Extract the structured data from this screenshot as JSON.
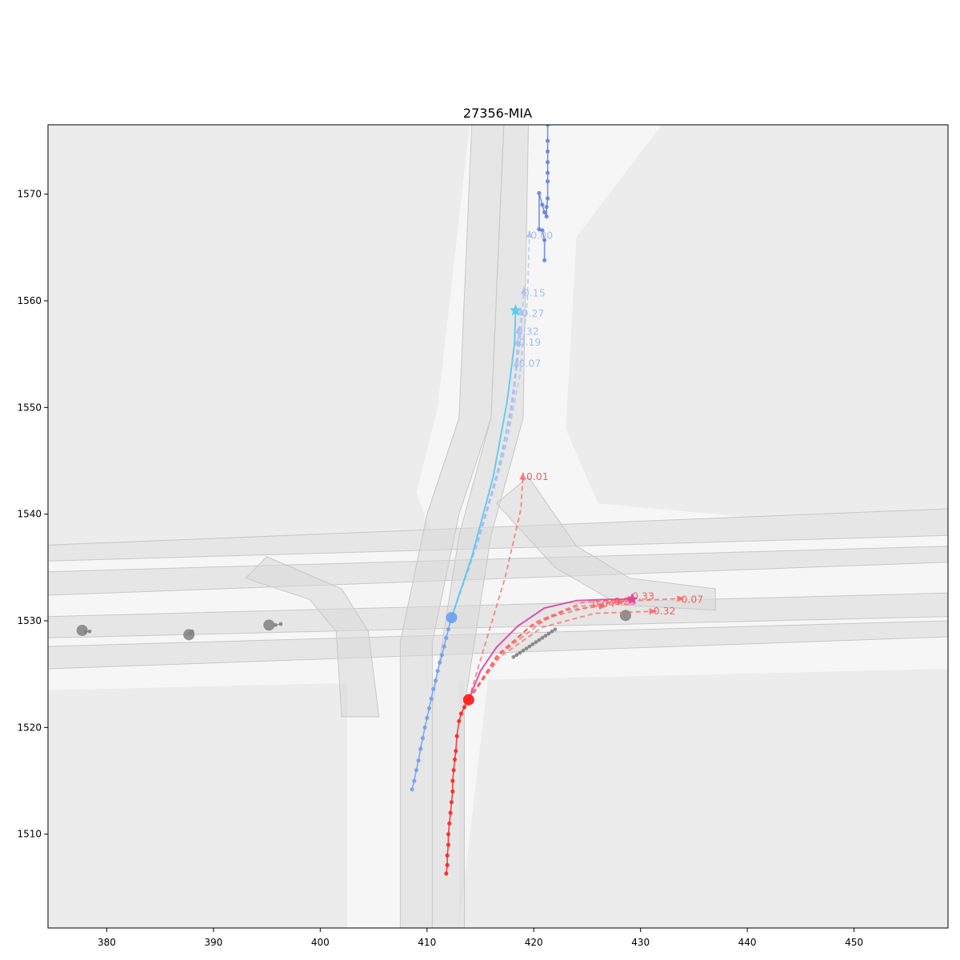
{
  "chart_data": {
    "type": "scatter",
    "title": "27356-MIA",
    "xlabel": "",
    "ylabel": "",
    "xlim": [
      374.5,
      458.8
    ],
    "ylim": [
      1501.2,
      1576.5
    ],
    "x_ticks": [
      380,
      390,
      400,
      410,
      420,
      430,
      440,
      450
    ],
    "y_ticks": [
      1510,
      1520,
      1530,
      1540,
      1550,
      1560,
      1570
    ],
    "grid": false,
    "legend": "none",
    "colors": {
      "background": "#ffffff",
      "plot_background": "#ececec",
      "road": "#f6f6f6",
      "lane": "#d9d9d9",
      "focal_history": "#ff2020",
      "focal_prediction": "#ff5a5a",
      "focal_ground_truth": "#e040a0",
      "blue_history": "#6f9ef0",
      "blue_prediction": "#a6bff0",
      "blue_ground_truth": "#5ac8f0",
      "other_agent": "#808080",
      "far_agent": "#5f7fe0"
    },
    "map": {
      "roads": [
        [
          [
            374.5,
            1537
          ],
          [
            458.8,
            1540.5
          ],
          [
            458.8,
            1525.5
          ],
          [
            374.5,
            1523.5
          ]
        ],
        [
          [
            402.5,
            1501.2
          ],
          [
            413.5,
            1501.2
          ],
          [
            413.5,
            1530
          ],
          [
            409,
            1542
          ],
          [
            411,
            1550
          ],
          [
            414,
            1576.5
          ],
          [
            432,
            1576.5
          ],
          [
            424,
            1566
          ],
          [
            423,
            1548
          ],
          [
            426,
            1541
          ],
          [
            458.8,
            1538
          ],
          [
            458.8,
            1532
          ],
          [
            421,
            1534
          ],
          [
            416,
            1527
          ],
          [
            413,
            1501.2
          ]
        ],
        [
          [
            402.5,
            1501.2
          ],
          [
            413,
            1501.2
          ],
          [
            413,
            1530
          ],
          [
            402.5,
            1530
          ]
        ]
      ],
      "lanes": [
        [
          [
            374.5,
            1537.1
          ],
          [
            458.8,
            1540.5
          ],
          [
            458.8,
            1538
          ],
          [
            374.5,
            1535.6
          ]
        ],
        [
          [
            374.5,
            1534.6
          ],
          [
            458.8,
            1537
          ],
          [
            458.8,
            1535.5
          ],
          [
            374.5,
            1532.4
          ]
        ],
        [
          [
            374.5,
            1530.4
          ],
          [
            458.8,
            1532.6
          ],
          [
            458.8,
            1530.4
          ],
          [
            374.5,
            1528.4
          ]
        ],
        [
          [
            374.5,
            1527.6
          ],
          [
            458.8,
            1530
          ],
          [
            458.8,
            1528.5
          ],
          [
            374.5,
            1525.5
          ]
        ],
        [
          [
            407.5,
            1501.2
          ],
          [
            410.5,
            1501.2
          ],
          [
            410.5,
            1528
          ],
          [
            413,
            1540
          ],
          [
            416,
            1549
          ],
          [
            417.2,
            1576.5
          ],
          [
            414.2,
            1576.5
          ],
          [
            413,
            1549
          ],
          [
            410,
            1540
          ],
          [
            407.5,
            1528
          ]
        ],
        [
          [
            410.5,
            1501.2
          ],
          [
            413.5,
            1501.2
          ],
          [
            413.5,
            1522
          ],
          [
            416,
            1538
          ],
          [
            419,
            1549
          ],
          [
            419.5,
            1576.5
          ],
          [
            417.2,
            1576.5
          ],
          [
            416,
            1549
          ],
          [
            413,
            1538
          ],
          [
            410.5,
            1522
          ]
        ],
        [
          [
            419.5,
            1543.5
          ],
          [
            424,
            1537
          ],
          [
            429,
            1534
          ],
          [
            437,
            1533
          ],
          [
            437,
            1531
          ],
          [
            428,
            1531.5
          ],
          [
            422,
            1535
          ],
          [
            416.5,
            1541
          ]
        ],
        [
          [
            395,
            1536
          ],
          [
            402,
            1533
          ],
          [
            404.5,
            1529
          ],
          [
            405.5,
            1521
          ],
          [
            402,
            1521
          ],
          [
            401.5,
            1529
          ],
          [
            399,
            1532
          ],
          [
            393,
            1534
          ]
        ]
      ]
    },
    "agents": {
      "focal_history": {
        "x": [
          411.8,
          411.9,
          411.9,
          412.0,
          412.0,
          412.1,
          412.2,
          412.3,
          412.4,
          412.4,
          412.5,
          412.6,
          412.7,
          412.8,
          413.0,
          413.2,
          413.5,
          413.8
        ],
        "y": [
          1506.3,
          1507.1,
          1508.0,
          1509.0,
          1510.0,
          1511.0,
          1512.0,
          1513.0,
          1514.0,
          1515.0,
          1516.0,
          1517.0,
          1517.8,
          1519.2,
          1520.6,
          1521.3,
          1521.9,
          1522.6
        ]
      },
      "focal_current": {
        "x": 413.9,
        "y": 1522.6
      },
      "focal_ground_truth": {
        "x": [
          413.9,
          415.0,
          416.5,
          418.5,
          421.0,
          424.0,
          427.0,
          429.2
        ],
        "y": [
          1522.6,
          1525.3,
          1527.5,
          1529.5,
          1531.2,
          1531.9,
          1532.0,
          1532.0
        ]
      },
      "focal_endpoint": {
        "x": 429.2,
        "y": 1532.0
      },
      "focal_predictions": [
        {
          "prob_label": "0.01",
          "x": [
            413.9,
            415.5,
            417.3,
            418.8,
            419.0
          ],
          "y": [
            1522.6,
            1528.0,
            1534.0,
            1540.5,
            1543.9
          ],
          "label_xy": [
            419.3,
            1543.2
          ]
        },
        {
          "prob_label": "0.04",
          "x": [
            413.9,
            416.5,
            419.5,
            423.0,
            426.8
          ],
          "y": [
            1522.6,
            1526.5,
            1529.3,
            1531.0,
            1531.4
          ],
          "label_xy": [
            425.5,
            1531.3
          ]
        },
        {
          "prob_label": "0.23",
          "x": [
            413.9,
            416.5,
            419.8,
            423.8,
            428.5
          ],
          "y": [
            1522.6,
            1526.7,
            1529.6,
            1531.3,
            1531.8
          ],
          "label_xy": [
            427.5,
            1531.5
          ]
        },
        {
          "prob_label": "0.33",
          "x": [
            413.9,
            416.7,
            420.2,
            424.5,
            429.5
          ],
          "y": [
            1522.6,
            1526.9,
            1529.9,
            1531.7,
            1532.1
          ],
          "label_xy": [
            429.2,
            1532.0
          ]
        },
        {
          "prob_label": "0.32",
          "x": [
            413.9,
            416.8,
            420.8,
            425.7,
            431.5
          ],
          "y": [
            1522.6,
            1526.6,
            1529.4,
            1530.7,
            1530.9
          ],
          "label_xy": [
            431.2,
            1530.6
          ]
        },
        {
          "prob_label": "0.07",
          "x": [
            413.9,
            417.0,
            421.3,
            427.2,
            434.1
          ],
          "y": [
            1522.6,
            1527.0,
            1530.3,
            1531.8,
            1532.1
          ],
          "label_xy": [
            433.8,
            1531.7
          ]
        }
      ],
      "blue_history": {
        "x": [
          408.6,
          408.8,
          409.0,
          409.2,
          409.4,
          409.6,
          409.8,
          410.0,
          410.2,
          410.4,
          410.6,
          410.8,
          411.0,
          411.2,
          411.4,
          411.6,
          411.8,
          412.0,
          412.2
        ],
        "y": [
          1514.2,
          1515.0,
          1516.0,
          1516.9,
          1518.0,
          1519.0,
          1520.0,
          1520.9,
          1521.8,
          1522.7,
          1523.6,
          1524.4,
          1525.3,
          1526.1,
          1526.8,
          1527.6,
          1528.4,
          1529.2,
          1530.0
        ]
      },
      "blue_current": {
        "x": 412.3,
        "y": 1530.3
      },
      "blue_ground_truth": {
        "x": [
          412.3,
          414.2,
          416.2,
          417.5,
          418.2,
          418.3
        ],
        "y": [
          1530.3,
          1536.0,
          1543.5,
          1550.5,
          1556.0,
          1559.1
        ]
      },
      "blue_endpoint": {
        "x": 418.3,
        "y": 1559.1
      },
      "blue_predictions": [
        {
          "prob_label": "0.00",
          "x": [
            412.3,
            415.0,
            417.3,
            418.7,
            419.4,
            419.6
          ],
          "y": [
            1530.3,
            1538.0,
            1546.0,
            1553.0,
            1560.0,
            1566.6
          ],
          "label_xy": [
            419.7,
            1565.8
          ]
        },
        {
          "prob_label": "0.15",
          "x": [
            412.3,
            414.8,
            416.9,
            418.1,
            418.8,
            419.1
          ],
          "y": [
            1530.3,
            1537.5,
            1545.0,
            1551.5,
            1557.0,
            1561.3
          ],
          "label_xy": [
            419.0,
            1560.4
          ]
        },
        {
          "prob_label": "0.27",
          "x": [
            412.3,
            414.7,
            416.8,
            418.0,
            418.6,
            418.8
          ],
          "y": [
            1530.3,
            1537.3,
            1544.5,
            1550.5,
            1555.5,
            1559.3
          ],
          "label_xy": [
            418.9,
            1558.5
          ]
        },
        {
          "prob_label": "0.32",
          "x": [
            412.3,
            414.6,
            416.6,
            417.8,
            418.4,
            418.6
          ],
          "y": [
            1530.3,
            1537.0,
            1544.0,
            1549.5,
            1554.2,
            1557.6
          ],
          "label_xy": [
            418.4,
            1556.8
          ]
        },
        {
          "prob_label": "0.19",
          "x": [
            412.3,
            414.5,
            416.5,
            417.7,
            418.3,
            418.5
          ],
          "y": [
            1530.3,
            1536.8,
            1543.5,
            1548.8,
            1553.3,
            1556.5
          ],
          "label_xy": [
            418.6,
            1555.8
          ]
        },
        {
          "prob_label": "0.07",
          "x": [
            412.3,
            414.3,
            416.3,
            417.6,
            418.2,
            418.4
          ],
          "y": [
            1530.3,
            1536.2,
            1542.5,
            1547.5,
            1551.5,
            1554.5
          ],
          "label_xy": [
            418.6,
            1553.8
          ]
        }
      ],
      "far_agent": {
        "x": [
          421.3,
          421.3,
          421.3,
          421.3,
          421.3,
          421.3,
          421.3,
          421.2,
          421.2,
          421.0,
          420.8,
          420.5,
          420.5,
          420.8,
          421.0,
          421.0
        ],
        "y": [
          1576.5,
          1575.0,
          1574.0,
          1573.0,
          1572.0,
          1571.2,
          1569.6,
          1568.8,
          1567.9,
          1568.3,
          1569.0,
          1570.1,
          1566.7,
          1566.6,
          1565.7,
          1563.8
        ]
      },
      "other_agents": [
        {
          "x": [
            422.0,
            421.7,
            421.4,
            421.1,
            420.8,
            420.5,
            420.2,
            419.9,
            419.6,
            419.3,
            419.0,
            418.7,
            418.4,
            418.1
          ],
          "y": [
            1529.2,
            1529.0,
            1528.8,
            1528.6,
            1528.4,
            1528.2,
            1528.0,
            1527.8,
            1527.6,
            1527.4,
            1527.2,
            1527.0,
            1526.8,
            1526.6
          ],
          "current": [
            428.6,
            1530.5
          ]
        },
        {
          "x": [
            395.8,
            396.3
          ],
          "y": [
            1529.6,
            1529.7
          ],
          "current": [
            395.2,
            1529.6
          ]
        },
        {
          "x": [
            387.8,
            388.0
          ],
          "y": [
            1528.8,
            1529.0
          ],
          "current": [
            387.7,
            1528.7
          ]
        },
        {
          "x": [
            378.0,
            378.4
          ],
          "y": [
            1529.0,
            1529.0
          ],
          "current": [
            377.7,
            1529.1
          ]
        }
      ]
    }
  }
}
